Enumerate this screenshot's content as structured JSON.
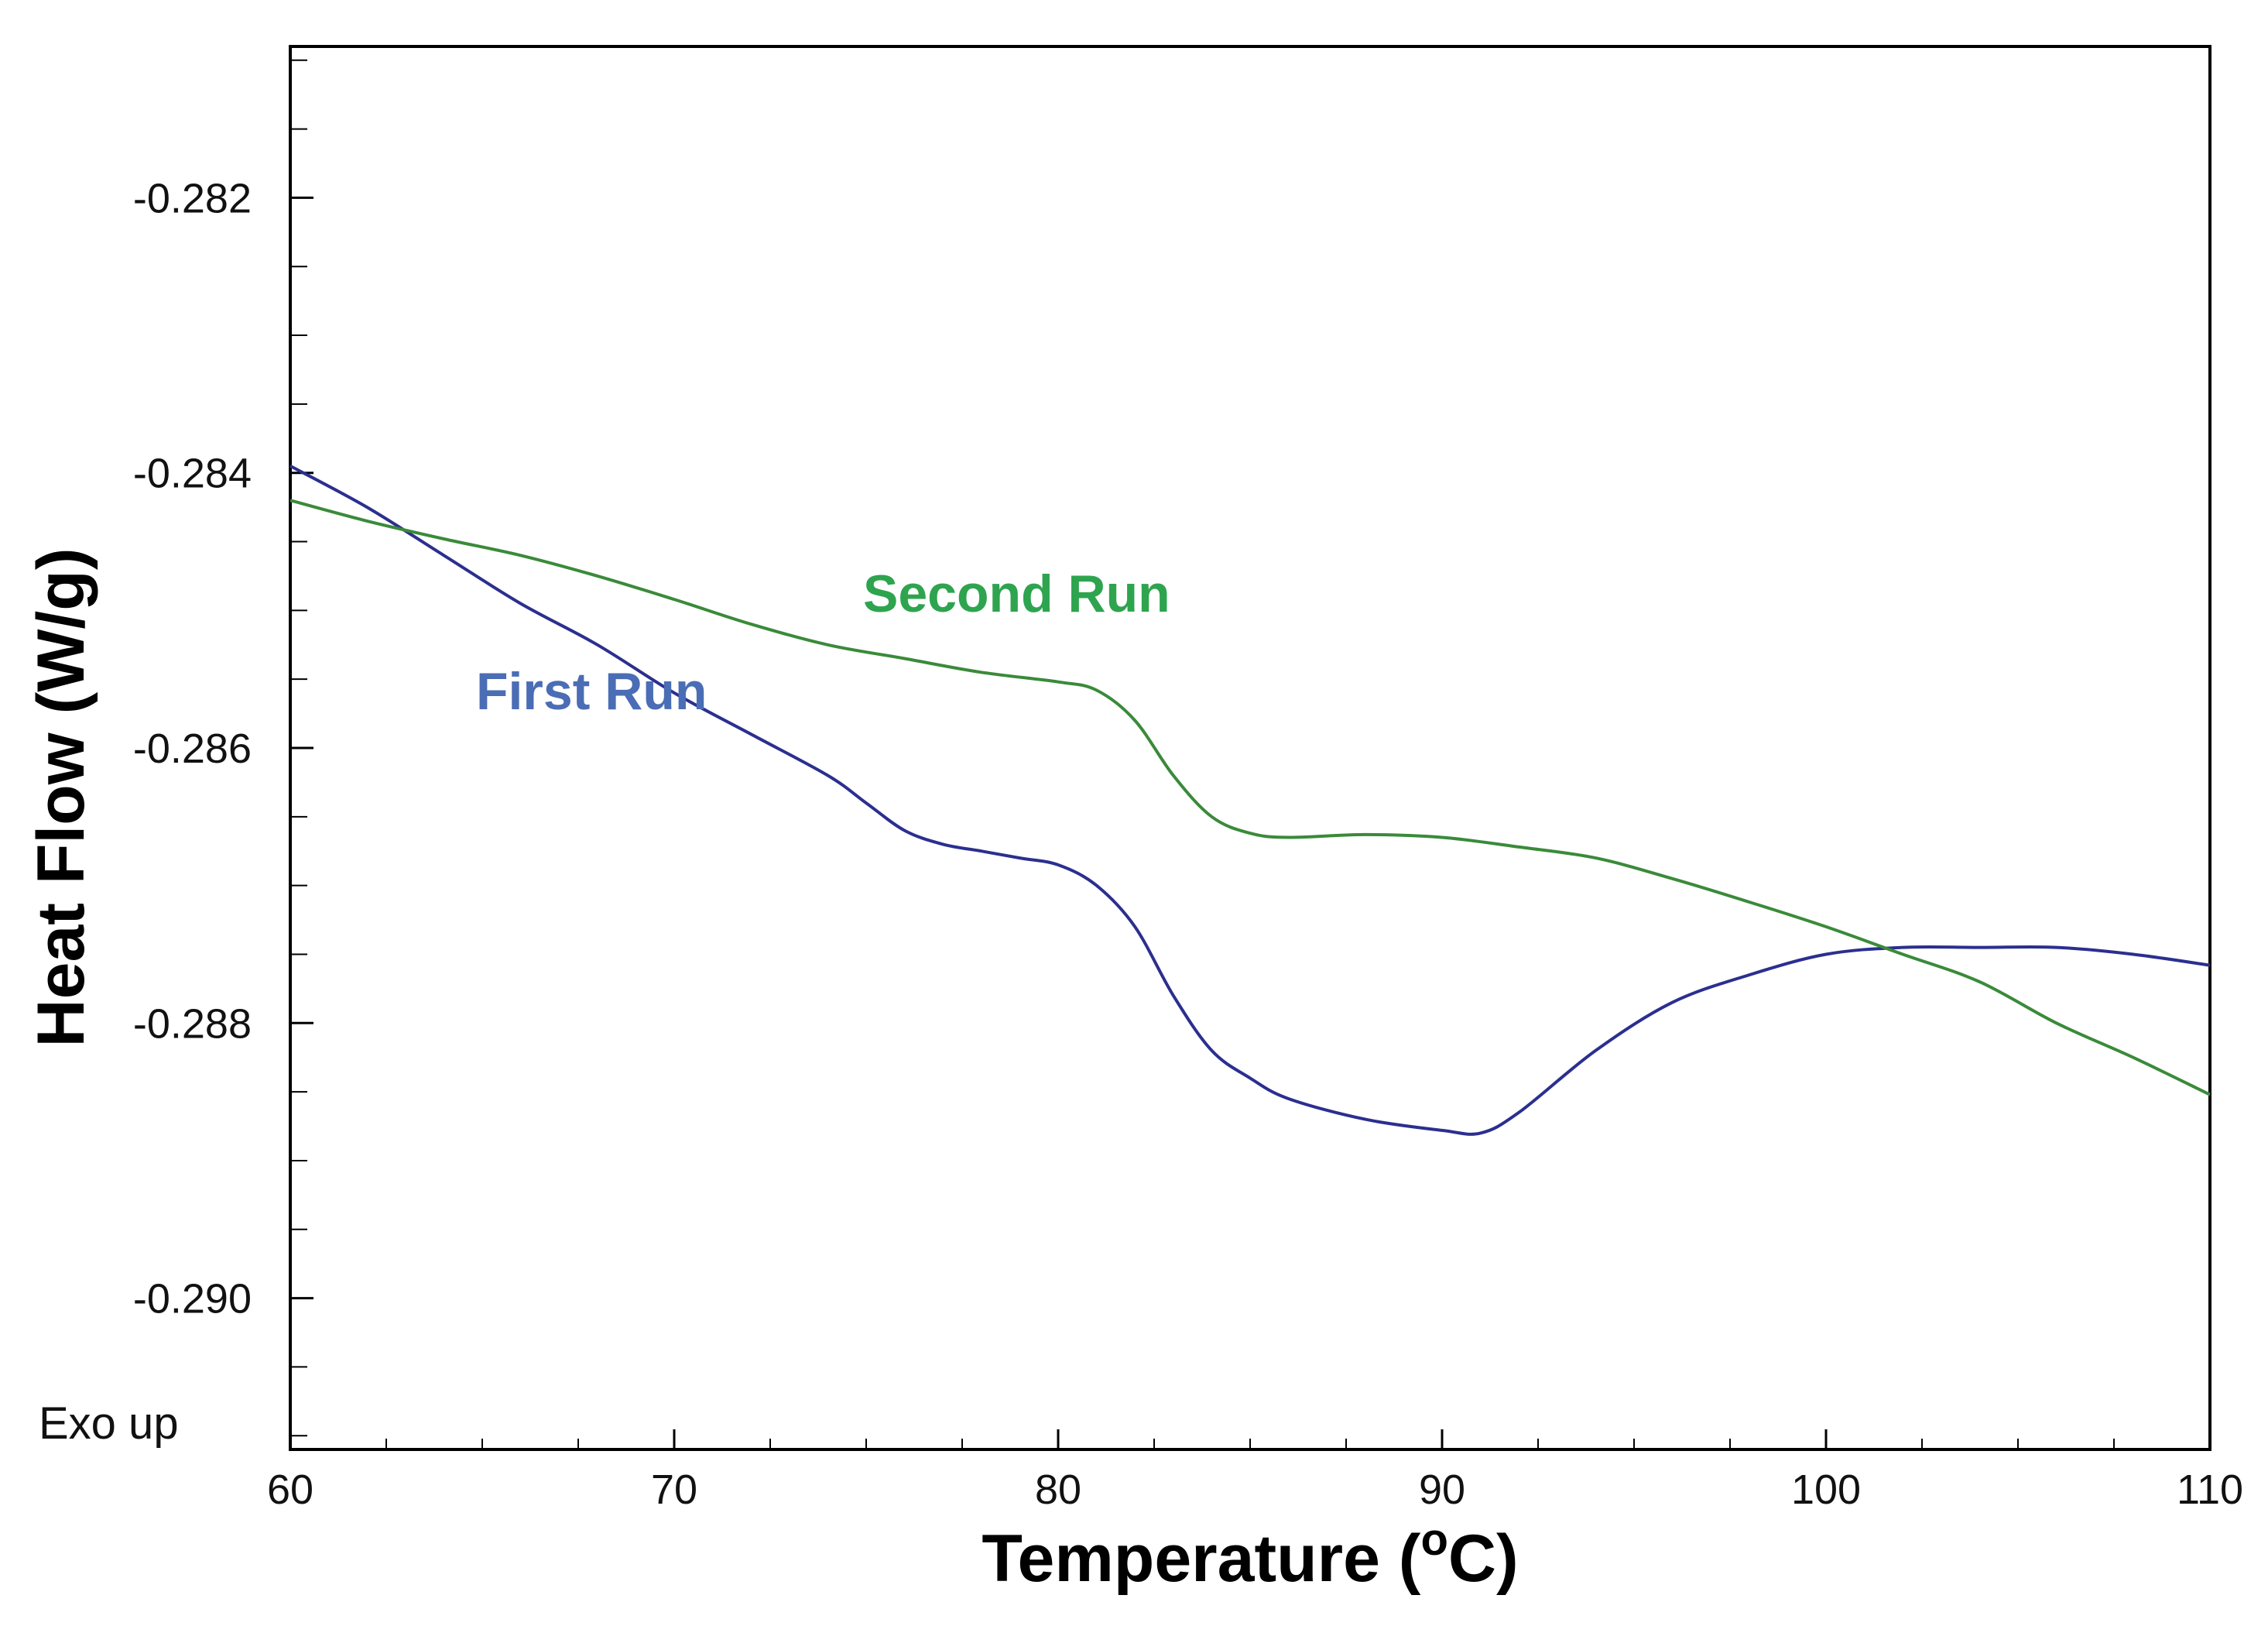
{
  "chart_data": {
    "type": "line",
    "title": "",
    "xlabel": {
      "main": "Temperature (",
      "sup": "o",
      "unit": "C)"
    },
    "ylabel": "Heat Flow (W/g)",
    "xlim": [
      60,
      110
    ],
    "ylim": [
      -0.2911,
      -0.2809
    ],
    "x_major_ticks": [
      60,
      70,
      80,
      90,
      100,
      110
    ],
    "x_tick_labels": [
      "60",
      "70",
      "80",
      "90",
      "100",
      "110"
    ],
    "x_minor_step": 2.5,
    "y_major_ticks": [
      -0.282,
      -0.284,
      -0.286,
      -0.288,
      -0.29
    ],
    "y_tick_labels": [
      "-0.282",
      "-0.284",
      "-0.286",
      "-0.288",
      "-0.290"
    ],
    "y_minor_step": 0.0005,
    "grid": false,
    "note": "Exo up",
    "series": [
      {
        "name": "First Run",
        "color": "#2b2f8f",
        "label_color": "#4a6db5",
        "x": [
          60,
          62,
          64,
          66,
          68,
          70,
          72,
          74,
          75,
          76,
          77,
          78,
          79,
          80,
          81,
          82,
          83,
          84,
          85,
          86,
          88,
          90,
          91,
          92,
          94,
          96,
          98,
          100,
          102,
          104,
          106,
          108,
          110
        ],
        "y": [
          -0.28395,
          -0.28425,
          -0.2846,
          -0.28495,
          -0.28525,
          -0.2856,
          -0.2859,
          -0.2862,
          -0.2864,
          -0.2866,
          -0.2867,
          -0.28675,
          -0.2868,
          -0.28685,
          -0.287,
          -0.2873,
          -0.2878,
          -0.2882,
          -0.2884,
          -0.28855,
          -0.2887,
          -0.28878,
          -0.2888,
          -0.28865,
          -0.2882,
          -0.28785,
          -0.28765,
          -0.2875,
          -0.28745,
          -0.28745,
          -0.28745,
          -0.2875,
          -0.28758
        ]
      },
      {
        "name": "Second Run",
        "color": "#3a8a3a",
        "label_color": "#2ea44f",
        "x": [
          60,
          62,
          64,
          66,
          68,
          70,
          72,
          74,
          76,
          78,
          80,
          81,
          82,
          83,
          84,
          85,
          86,
          88,
          90,
          92,
          94,
          96,
          98,
          100,
          102,
          104,
          106,
          108,
          110
        ],
        "y": [
          -0.2842,
          -0.28435,
          -0.28448,
          -0.2846,
          -0.28475,
          -0.28492,
          -0.2851,
          -0.28525,
          -0.28535,
          -0.28545,
          -0.28552,
          -0.28558,
          -0.2858,
          -0.2862,
          -0.2865,
          -0.28662,
          -0.28665,
          -0.28663,
          -0.28665,
          -0.28672,
          -0.2868,
          -0.28695,
          -0.28712,
          -0.2873,
          -0.2875,
          -0.2877,
          -0.288,
          -0.28825,
          -0.28852
        ]
      }
    ]
  }
}
